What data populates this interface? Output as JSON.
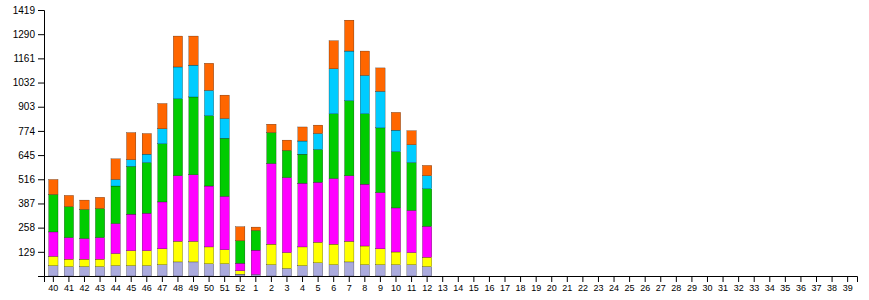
{
  "chart_data": {
    "type": "bar",
    "stacked": true,
    "grid": false,
    "categories": [
      "40",
      "41",
      "42",
      "43",
      "44",
      "45",
      "46",
      "47",
      "48",
      "49",
      "50",
      "51",
      "52",
      "1",
      "2",
      "3",
      "4",
      "5",
      "6",
      "7",
      "8",
      "9",
      "10",
      "11",
      "12",
      "13",
      "14",
      "15",
      "16",
      "17",
      "18",
      "19",
      "20",
      "21",
      "22",
      "23",
      "24",
      "25",
      "26",
      "27",
      "28",
      "29",
      "30",
      "31",
      "32",
      "33",
      "34",
      "35",
      "36",
      "37",
      "38",
      "39"
    ],
    "series": [
      {
        "color": "#aaaadd",
        "values": [
          55,
          50,
          50,
          50,
          55,
          55,
          55,
          60,
          75,
          75,
          65,
          65,
          10,
          8,
          60,
          40,
          55,
          70,
          60,
          75,
          60,
          60,
          60,
          60,
          50,
          0,
          0,
          0,
          0,
          0,
          0,
          0,
          0,
          0,
          0,
          0,
          0,
          0,
          0,
          0,
          0,
          0,
          0,
          0,
          0,
          0,
          0,
          0,
          0,
          0,
          0,
          0
        ]
      },
      {
        "color": "#ffff00",
        "values": [
          50,
          40,
          40,
          40,
          65,
          80,
          80,
          85,
          110,
          110,
          90,
          75,
          18,
          0,
          110,
          85,
          100,
          110,
          110,
          110,
          100,
          85,
          68,
          65,
          50,
          0,
          0,
          0,
          0,
          0,
          0,
          0,
          0,
          0,
          0,
          0,
          0,
          0,
          0,
          0,
          0,
          0,
          0,
          0,
          0,
          0,
          0,
          0,
          0,
          0,
          0,
          0
        ]
      },
      {
        "color": "#ff00ff",
        "values": [
          130,
          115,
          110,
          115,
          160,
          195,
          200,
          250,
          350,
          355,
          325,
          285,
          40,
          130,
          430,
          400,
          340,
          320,
          350,
          350,
          330,
          300,
          235,
          225,
          165,
          0,
          0,
          0,
          0,
          0,
          0,
          0,
          0,
          0,
          0,
          0,
          0,
          0,
          0,
          0,
          0,
          0,
          0,
          0,
          0,
          0,
          0,
          0,
          0,
          0,
          0,
          0
        ]
      },
      {
        "color": "#00cc00",
        "values": [
          200,
          165,
          155,
          155,
          200,
          255,
          270,
          310,
          410,
          415,
          375,
          310,
          120,
          105,
          165,
          145,
          155,
          175,
          345,
          400,
          375,
          345,
          300,
          255,
          200,
          0,
          0,
          0,
          0,
          0,
          0,
          0,
          0,
          0,
          0,
          0,
          0,
          0,
          0,
          0,
          0,
          0,
          0,
          0,
          0,
          0,
          0,
          0,
          0,
          0,
          0,
          0
        ]
      },
      {
        "color": "#00ccff",
        "values": [
          0,
          0,
          0,
          0,
          35,
          35,
          45,
          80,
          170,
          170,
          135,
          105,
          0,
          0,
          0,
          0,
          70,
          85,
          240,
          265,
          205,
          195,
          115,
          95,
          70,
          0,
          0,
          0,
          0,
          0,
          0,
          0,
          0,
          0,
          0,
          0,
          0,
          0,
          0,
          0,
          0,
          0,
          0,
          0,
          0,
          0,
          0,
          0,
          0,
          0,
          0,
          0
        ]
      },
      {
        "color": "#ff6600",
        "values": [
          80,
          60,
          50,
          60,
          110,
          145,
          110,
          135,
          165,
          155,
          145,
          125,
          75,
          18,
          45,
          55,
          75,
          45,
          150,
          165,
          130,
          125,
          95,
          75,
          55,
          0,
          0,
          0,
          0,
          0,
          0,
          0,
          0,
          0,
          0,
          0,
          0,
          0,
          0,
          0,
          0,
          0,
          0,
          0,
          0,
          0,
          0,
          0,
          0,
          0,
          0,
          0
        ]
      }
    ],
    "ylim": [
      0,
      1419
    ],
    "yticks": [
      129,
      258,
      387,
      516,
      645,
      774,
      903,
      1032,
      1161,
      1290,
      1419
    ]
  }
}
